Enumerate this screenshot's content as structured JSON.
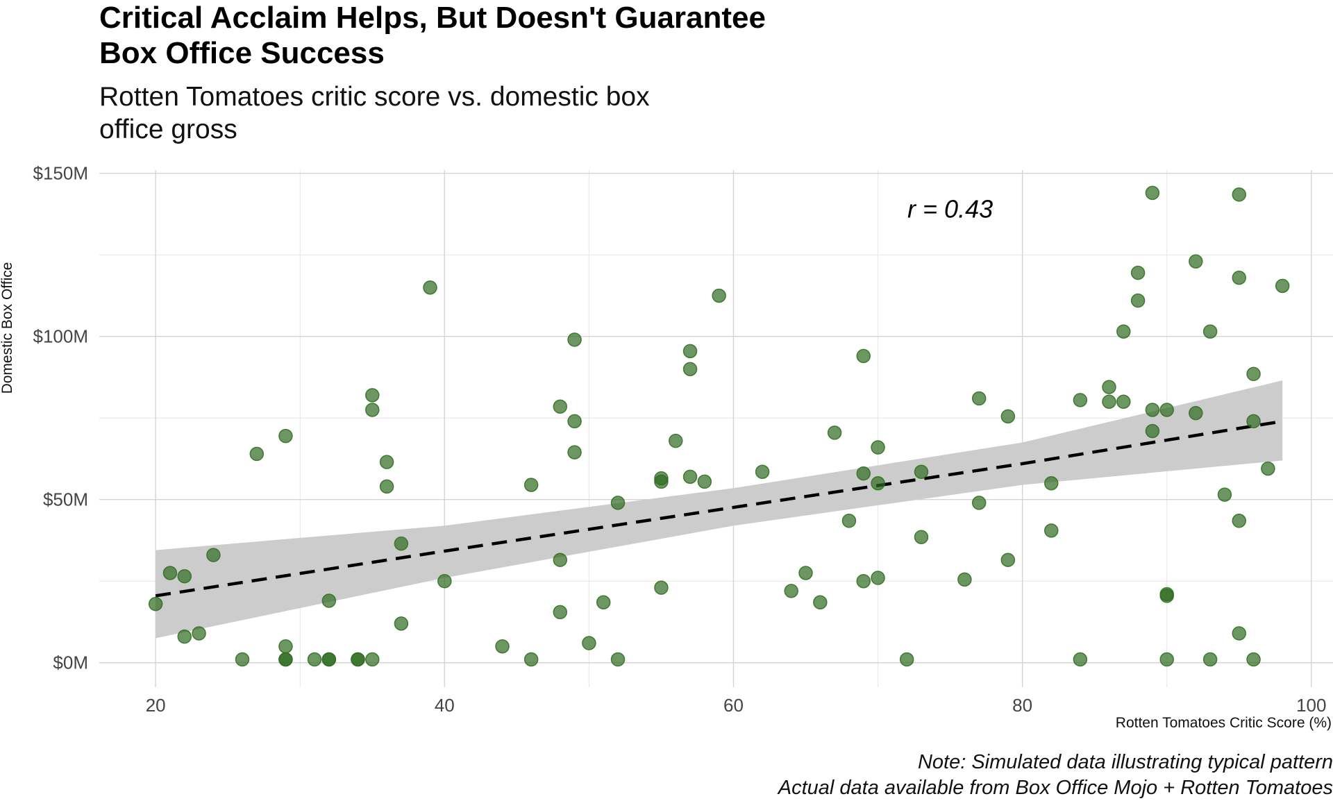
{
  "title_line1": "Critical Acclaim Helps, But Doesn't Guarantee",
  "title_line2": "Box Office Success",
  "subtitle_line1": "Rotten Tomatoes critic score vs. domestic box",
  "subtitle_line2": "office gross",
  "caption_line1": "Note: Simulated data illustrating typical pattern",
  "caption_line2": "Actual data available from Box Office Mojo + Rotten Tomatoes",
  "chart_data": {
    "type": "scatter",
    "xlabel": "Rotten Tomatoes Critic Score (%)",
    "ylabel": "Domestic Box Office",
    "xlim": [
      16.1,
      101.5
    ],
    "ylim": [
      -7.5,
      151.0
    ],
    "x_ticks": [
      20,
      40,
      60,
      80,
      100
    ],
    "y_ticks": [
      0,
      50,
      100,
      150
    ],
    "y_tick_labels": [
      "$0M",
      "$50M",
      "$100M",
      "$150M"
    ],
    "grid": true,
    "point_color": "#2e6b1f",
    "annotation": "r = 0.43",
    "annotation_x": 75,
    "annotation_y": 139,
    "trend_line": {
      "x": [
        20,
        40,
        60,
        80,
        98
      ],
      "y": [
        20.5,
        34.2,
        47.6,
        61.0,
        74.0
      ],
      "ci_lower": [
        7.5,
        26.0,
        42.0,
        54.5,
        62.0
      ],
      "ci_upper": [
        34.5,
        42.0,
        53.5,
        67.5,
        86.5
      ]
    },
    "points": [
      {
        "x": 20,
        "y": 18
      },
      {
        "x": 21,
        "y": 27.5
      },
      {
        "x": 22,
        "y": 26.5
      },
      {
        "x": 22,
        "y": 8
      },
      {
        "x": 23,
        "y": 9
      },
      {
        "x": 24,
        "y": 33
      },
      {
        "x": 26,
        "y": 1
      },
      {
        "x": 27,
        "y": 64
      },
      {
        "x": 29,
        "y": 69.5
      },
      {
        "x": 29,
        "y": 5
      },
      {
        "x": 29,
        "y": 1
      },
      {
        "x": 29,
        "y": 1
      },
      {
        "x": 31,
        "y": 1
      },
      {
        "x": 32,
        "y": 19
      },
      {
        "x": 32,
        "y": 1
      },
      {
        "x": 32,
        "y": 1
      },
      {
        "x": 34,
        "y": 1
      },
      {
        "x": 34,
        "y": 1
      },
      {
        "x": 35,
        "y": 82
      },
      {
        "x": 35,
        "y": 77.5
      },
      {
        "x": 35,
        "y": 1
      },
      {
        "x": 36,
        "y": 61.5
      },
      {
        "x": 36,
        "y": 54
      },
      {
        "x": 37,
        "y": 36.5
      },
      {
        "x": 37,
        "y": 12
      },
      {
        "x": 39,
        "y": 115
      },
      {
        "x": 40,
        "y": 25
      },
      {
        "x": 44,
        "y": 5
      },
      {
        "x": 46,
        "y": 54.5
      },
      {
        "x": 46,
        "y": 1
      },
      {
        "x": 48,
        "y": 78.5
      },
      {
        "x": 48,
        "y": 31.5
      },
      {
        "x": 48,
        "y": 15.5
      },
      {
        "x": 49,
        "y": 99
      },
      {
        "x": 49,
        "y": 74
      },
      {
        "x": 49,
        "y": 64.5
      },
      {
        "x": 50,
        "y": 6
      },
      {
        "x": 51,
        "y": 18.5
      },
      {
        "x": 52,
        "y": 49
      },
      {
        "x": 52,
        "y": 1
      },
      {
        "x": 55,
        "y": 56.5
      },
      {
        "x": 55,
        "y": 55.5
      },
      {
        "x": 55,
        "y": 23
      },
      {
        "x": 56,
        "y": 68
      },
      {
        "x": 57,
        "y": 95.5
      },
      {
        "x": 57,
        "y": 90
      },
      {
        "x": 57,
        "y": 57
      },
      {
        "x": 58,
        "y": 55.5
      },
      {
        "x": 59,
        "y": 112.5
      },
      {
        "x": 62,
        "y": 58.5
      },
      {
        "x": 64,
        "y": 22
      },
      {
        "x": 65,
        "y": 27.5
      },
      {
        "x": 66,
        "y": 18.5
      },
      {
        "x": 67,
        "y": 70.5
      },
      {
        "x": 68,
        "y": 43.5
      },
      {
        "x": 69,
        "y": 94
      },
      {
        "x": 69,
        "y": 58
      },
      {
        "x": 69,
        "y": 25
      },
      {
        "x": 70,
        "y": 66
      },
      {
        "x": 70,
        "y": 55
      },
      {
        "x": 70,
        "y": 26
      },
      {
        "x": 72,
        "y": 1
      },
      {
        "x": 73,
        "y": 58.5
      },
      {
        "x": 73,
        "y": 38.5
      },
      {
        "x": 76,
        "y": 25.5
      },
      {
        "x": 77,
        "y": 81
      },
      {
        "x": 77,
        "y": 49
      },
      {
        "x": 79,
        "y": 75.5
      },
      {
        "x": 79,
        "y": 31.5
      },
      {
        "x": 82,
        "y": 55
      },
      {
        "x": 82,
        "y": 40.5
      },
      {
        "x": 84,
        "y": 80.5
      },
      {
        "x": 84,
        "y": 1
      },
      {
        "x": 86,
        "y": 84.5
      },
      {
        "x": 86,
        "y": 80
      },
      {
        "x": 87,
        "y": 101.5
      },
      {
        "x": 87,
        "y": 80
      },
      {
        "x": 88,
        "y": 119.5
      },
      {
        "x": 88,
        "y": 111
      },
      {
        "x": 89,
        "y": 144
      },
      {
        "x": 89,
        "y": 77.5
      },
      {
        "x": 89,
        "y": 71
      },
      {
        "x": 90,
        "y": 77.5
      },
      {
        "x": 90,
        "y": 21
      },
      {
        "x": 90,
        "y": 20.5
      },
      {
        "x": 90,
        "y": 1
      },
      {
        "x": 92,
        "y": 123
      },
      {
        "x": 92,
        "y": 76.5
      },
      {
        "x": 93,
        "y": 101.5
      },
      {
        "x": 93,
        "y": 1
      },
      {
        "x": 94,
        "y": 51.5
      },
      {
        "x": 95,
        "y": 143.5
      },
      {
        "x": 95,
        "y": 118
      },
      {
        "x": 95,
        "y": 43.5
      },
      {
        "x": 95,
        "y": 9
      },
      {
        "x": 96,
        "y": 88.5
      },
      {
        "x": 96,
        "y": 74
      },
      {
        "x": 96,
        "y": 1
      },
      {
        "x": 97,
        "y": 59.5
      },
      {
        "x": 98,
        "y": 115.5
      }
    ]
  }
}
